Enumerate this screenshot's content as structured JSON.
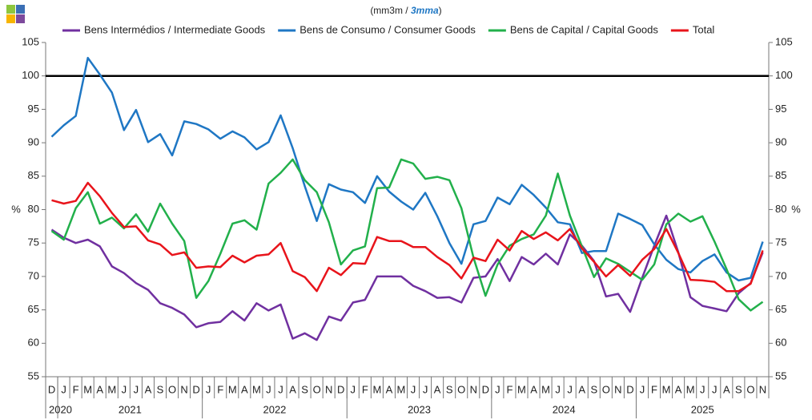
{
  "chart_data": {
    "type": "line",
    "subtitle_parts": [
      "(mm3m / ",
      "3mma",
      ")"
    ],
    "ylabel": "%",
    "y2label": "%",
    "categories": [
      "D",
      "J",
      "F",
      "M",
      "A",
      "M",
      "J",
      "J",
      "A",
      "S",
      "O",
      "N",
      "D",
      "J",
      "F",
      "M",
      "A",
      "M",
      "J",
      "J",
      "A",
      "S",
      "O",
      "N",
      "D",
      "J",
      "F",
      "M",
      "A",
      "M",
      "J",
      "J",
      "A",
      "S",
      "O",
      "N",
      "D",
      "J",
      "F",
      "M",
      "A",
      "M",
      "J",
      "J",
      "A",
      "S",
      "O",
      "N",
      "D",
      "J",
      "F",
      "M",
      "A",
      "M",
      "J",
      "J",
      "A",
      "S",
      "O",
      "N"
    ],
    "years": [
      "2020",
      "2021",
      "2022",
      "2023",
      "2024",
      "2025"
    ],
    "ylim": [
      55,
      105
    ],
    "yticks": [
      55,
      60,
      65,
      70,
      75,
      80,
      85,
      90,
      95,
      100,
      105
    ],
    "y2lim": [
      55,
      105
    ],
    "y2ticks": [
      55,
      60,
      65,
      70,
      75,
      80,
      85,
      90,
      95,
      100,
      105
    ],
    "reference_line": {
      "value": 100,
      "color": "#000000"
    },
    "series": [
      {
        "name": "Bens Intermédios / Intermediate Goods",
        "color": "#7030a0",
        "values": [
          77,
          75.8,
          75,
          75.5,
          74.5,
          71.5,
          70.5,
          69,
          68,
          66,
          65.3,
          64.3,
          62.4,
          63,
          63.2,
          64.8,
          63.4,
          66,
          64.9,
          65.8,
          60.7,
          61.5,
          60.5,
          64,
          63.4,
          66.1,
          66.5,
          70,
          70,
          70,
          68.6,
          67.8,
          66.8,
          66.9,
          66.1,
          69.8,
          70,
          72.6,
          69.3,
          72.9,
          71.8,
          73.4,
          71.8,
          76.3,
          74.6,
          72.3,
          67,
          67.4,
          64.7,
          69.8,
          74.6,
          79.1,
          73.6,
          66.9,
          65.6,
          65.2,
          64.8,
          67.5,
          69,
          73.6
        ]
      },
      {
        "name": "Bens de Consumo / Consumer Goods",
        "color": "#1f77c4",
        "values": [
          90.9,
          92.6,
          94,
          102.7,
          100.2,
          97.5,
          91.9,
          94.9,
          90.1,
          91.3,
          88.1,
          93.2,
          92.8,
          92,
          90.6,
          91.7,
          90.8,
          89,
          90.1,
          94.1,
          89.2,
          83.5,
          78.3,
          83.8,
          83,
          82.6,
          81,
          85,
          82.7,
          81.2,
          80,
          82.5,
          79,
          75,
          71.9,
          77.8,
          78.3,
          81.8,
          80.8,
          83.7,
          82.2,
          80.3,
          78.1,
          77.8,
          73.5,
          73.8,
          73.8,
          79.4,
          78.6,
          77.7,
          74.8,
          72.5,
          71.1,
          70.6,
          72.3,
          73.3,
          70.6,
          69.4,
          69.8,
          75.2
        ]
      },
      {
        "name": "Bens de Capital / Capital Goods",
        "color": "#22b04b",
        "values": [
          76.8,
          75.5,
          80.2,
          82.6,
          77.9,
          78.8,
          77.2,
          79.3,
          76.7,
          80.9,
          77.9,
          75.3,
          66.8,
          69.3,
          73.4,
          77.9,
          78.4,
          77,
          83.9,
          85.5,
          87.5,
          84.4,
          82.6,
          78.1,
          71.8,
          73.9,
          74.5,
          83.2,
          83.3,
          87.5,
          86.9,
          84.6,
          84.9,
          84.4,
          80.2,
          72.8,
          67.1,
          71.8,
          74.6,
          75.6,
          76.3,
          79.1,
          85.4,
          79.1,
          74.5,
          69.9,
          72.7,
          71.9,
          70.7,
          69.5,
          71.8,
          77.8,
          79.4,
          78.2,
          79,
          75.2,
          71.1,
          66.6,
          64.9,
          66.2
        ]
      },
      {
        "name": "Total",
        "color": "#e8141b",
        "values": [
          81.4,
          80.9,
          81.3,
          84,
          82,
          79.5,
          77.4,
          77.5,
          75.4,
          74.8,
          73.2,
          73.6,
          71.3,
          71.5,
          71.4,
          73.1,
          72.1,
          73.1,
          73.3,
          75,
          70.8,
          69.9,
          67.8,
          71.3,
          70.2,
          72,
          71.9,
          75.9,
          75.3,
          75.3,
          74.4,
          74.4,
          72.9,
          71.7,
          69.7,
          72.8,
          72.3,
          75.5,
          73.9,
          76.8,
          75.6,
          76.6,
          75.4,
          77.1,
          74.2,
          72.2,
          70,
          71.7,
          70.1,
          72.5,
          74.1,
          77.1,
          73.5,
          69.5,
          69.4,
          69.2,
          67.8,
          67.8,
          68.9,
          73.9
        ]
      }
    ]
  }
}
